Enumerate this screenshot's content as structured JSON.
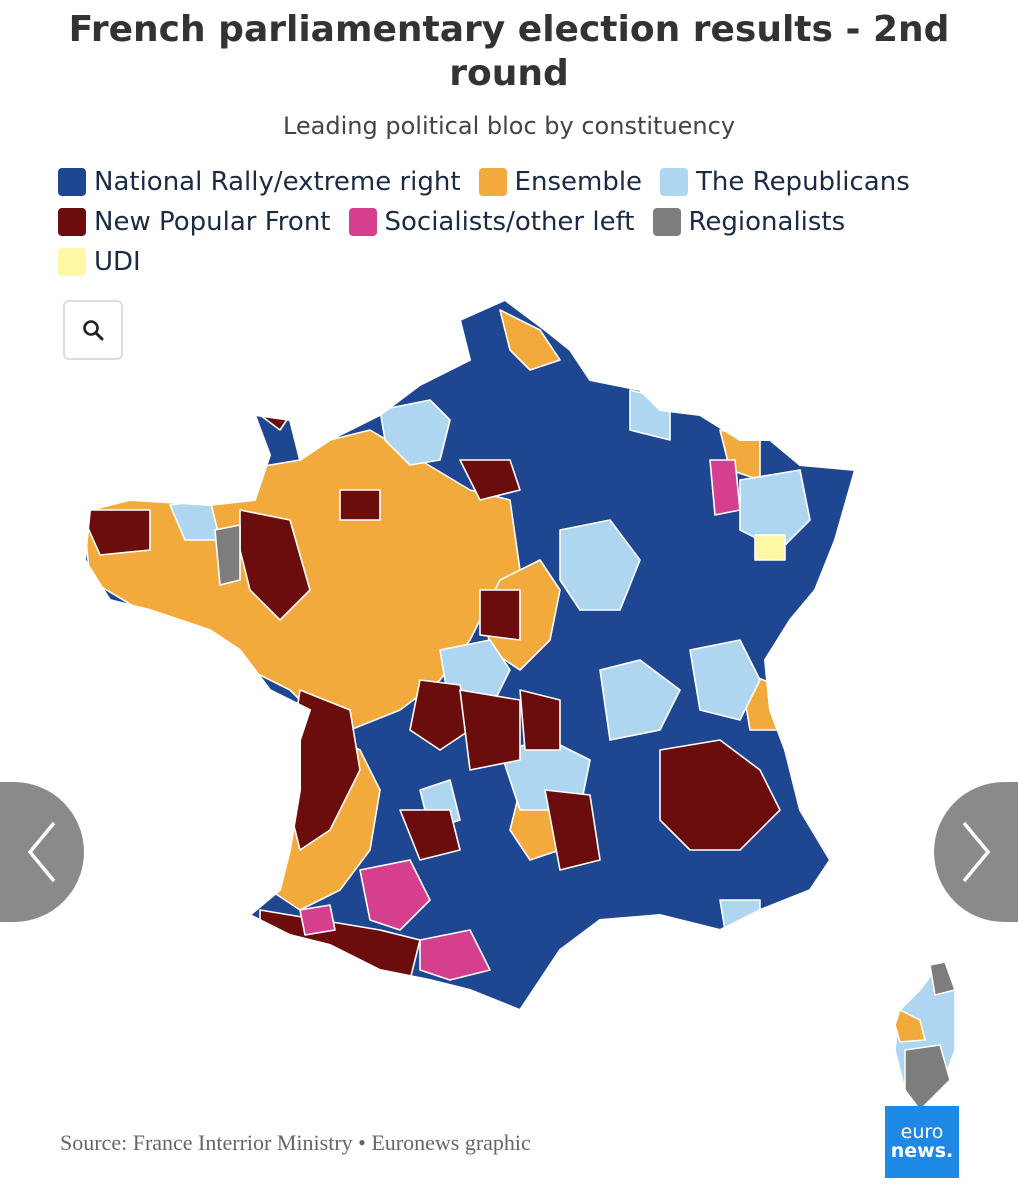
{
  "title": "French parliamentary election results - 2nd round",
  "subtitle": "Leading political bloc by constituency",
  "legend": [
    {
      "label": "National Rally/extreme right",
      "color": "#1f4690"
    },
    {
      "label": "Ensemble",
      "color": "#f2aa3c"
    },
    {
      "label": "The Republicans",
      "color": "#aed6f1"
    },
    {
      "label": "New Popular Front",
      "color": "#6b0d0d"
    },
    {
      "label": "Socialists/other left",
      "color": "#d63f8e"
    },
    {
      "label": "Regionalists",
      "color": "#7d7d7d"
    },
    {
      "label": "UDI",
      "color": "#fdf7a6"
    }
  ],
  "zoom_icon": "search-icon",
  "nav": {
    "prev_icon": "chevron-left-icon",
    "next_icon": "chevron-right-icon"
  },
  "source": "Source: France Interrior Ministry • Euronews graphic",
  "logo": {
    "line1": "euro",
    "line2": "news."
  }
}
